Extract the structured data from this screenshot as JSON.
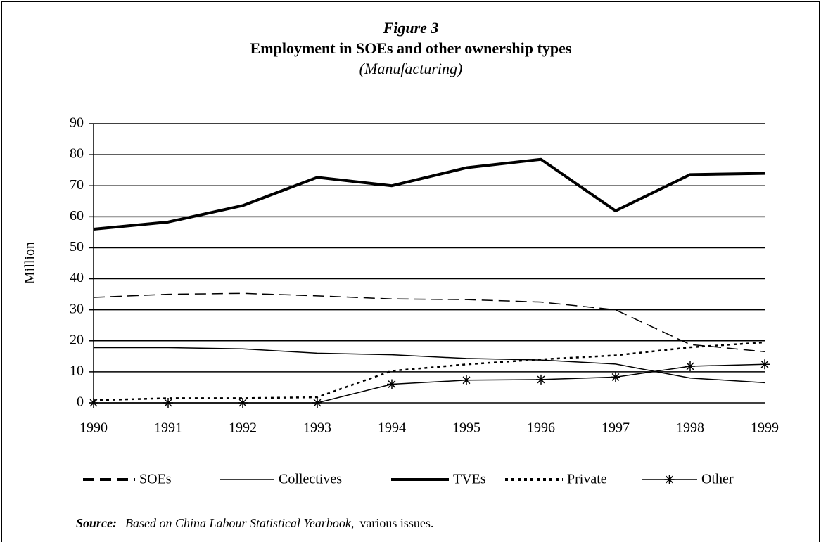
{
  "chart_data": {
    "type": "line",
    "figure": "Figure 3",
    "title": "Employment in SOEs and other ownership types",
    "subtitle": "(Manufacturing)",
    "y_label": "Million",
    "categories": [
      "1990",
      "1991",
      "1992",
      "1993",
      "1994",
      "1995",
      "1996",
      "1997",
      "1998",
      "1999"
    ],
    "series": [
      {
        "name": "SOEs",
        "color": "#000000",
        "values": [
          34,
          35,
          35.3,
          34.5,
          33.5,
          33.3,
          32.5,
          30,
          18.8,
          16.5
        ]
      },
      {
        "name": "Collectives",
        "color": "#000000",
        "values": [
          17.8,
          17.8,
          17.4,
          16,
          15.5,
          14.3,
          13.8,
          12.5,
          8,
          6.5
        ]
      },
      {
        "name": "TVEs",
        "color": "#000000",
        "values": [
          56,
          58.3,
          63.6,
          72.7,
          70,
          75.8,
          78.5,
          61.9,
          73.6,
          74
        ]
      },
      {
        "name": "Private",
        "color": "#000000",
        "values": [
          0.8,
          1.5,
          1.5,
          1.8,
          10.3,
          12.4,
          14,
          15.3,
          17.9,
          19.5
        ]
      },
      {
        "name": "Other",
        "color": "#000000",
        "values": [
          0,
          0,
          0,
          0,
          6,
          7.3,
          7.5,
          8.3,
          11.8,
          12.4
        ]
      }
    ],
    "ylim": [
      0,
      90
    ],
    "yticks": [
      0,
      10,
      20,
      30,
      40,
      50,
      60,
      70,
      80,
      90
    ],
    "grid": true,
    "source_label": "Source:",
    "source_text": "Based on China Labour Statistical Yearbook,",
    "source_tail": "various issues."
  }
}
